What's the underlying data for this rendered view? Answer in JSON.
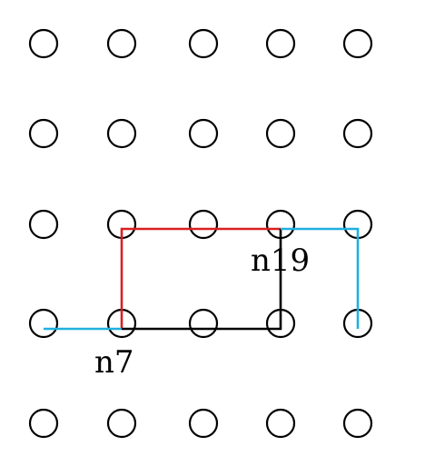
{
  "grid": {
    "rows": 5,
    "cols": 5
  },
  "colors": {
    "node_stroke": "#000000",
    "red_path": "#d92020",
    "blue_path": "#1fb0e0",
    "black_path": "#000000"
  },
  "paths": [
    {
      "name": "red-path",
      "color": "#d92020",
      "cells": [
        [
          1,
          3
        ],
        [
          1,
          2
        ],
        [
          2,
          2
        ],
        [
          3,
          2
        ]
      ]
    },
    {
      "name": "black-path",
      "color": "#000000",
      "cells": [
        [
          1,
          3
        ],
        [
          2,
          3
        ],
        [
          3,
          3
        ],
        [
          3,
          2
        ]
      ]
    },
    {
      "name": "blue-path-left",
      "color": "#1fb0e0",
      "cells": [
        [
          0,
          3
        ],
        [
          1,
          3
        ]
      ]
    },
    {
      "name": "blue-path-right",
      "color": "#1fb0e0",
      "cells": [
        [
          3,
          2
        ],
        [
          4,
          2
        ],
        [
          4,
          3
        ]
      ]
    }
  ],
  "labels": {
    "n7": "n7",
    "n19": "n19"
  }
}
